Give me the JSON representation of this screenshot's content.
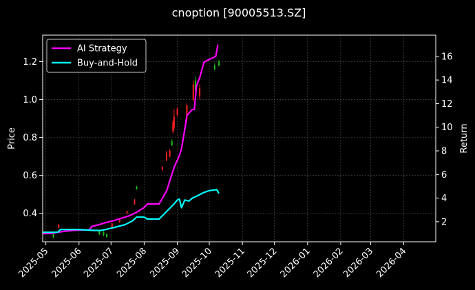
{
  "chart_data": {
    "type": "line",
    "title": "cnoption [90005513.SZ]",
    "xlabel": "",
    "ylabel": "Price",
    "y2label": "Return",
    "x_ticks": [
      "2025-05",
      "2025-06",
      "2025-07",
      "2025-08",
      "2025-09",
      "2025-10",
      "2025-11",
      "2025-12",
      "2026-01",
      "2026-02",
      "2026-03",
      "2026-04"
    ],
    "xlim": [
      "2025-04-28",
      "2026-05-01"
    ],
    "ylim": [
      0.25,
      1.34
    ],
    "y_ticks": [
      "0.4",
      "0.6",
      "0.8",
      "1.0",
      "1.2"
    ],
    "y2lim": [
      0.3,
      17.8
    ],
    "y2_ticks": [
      "2",
      "4",
      "6",
      "8",
      "10",
      "12",
      "14",
      "16"
    ],
    "grid": true,
    "legend_position": "top-left",
    "colors": {
      "background": "#000000",
      "up": "#ff2020",
      "down": "#20c020",
      "ai": "#ff00ff",
      "bh": "#00ffff",
      "grid": "#555555"
    },
    "series": [
      {
        "name": "AI Strategy",
        "axis": "right",
        "color": "#ff00ff",
        "points": [
          [
            "2025-04-28",
            1.0
          ],
          [
            "2025-05-05",
            1.0
          ],
          [
            "2025-05-12",
            1.1
          ],
          [
            "2025-05-19",
            1.2
          ],
          [
            "2025-05-26",
            1.25
          ],
          [
            "2025-06-02",
            1.3
          ],
          [
            "2025-06-09",
            1.3
          ],
          [
            "2025-06-11",
            1.35
          ],
          [
            "2025-06-13",
            1.6
          ],
          [
            "2025-06-20",
            1.75
          ],
          [
            "2025-06-27",
            1.95
          ],
          [
            "2025-07-04",
            2.1
          ],
          [
            "2025-07-11",
            2.3
          ],
          [
            "2025-07-18",
            2.5
          ],
          [
            "2025-07-25",
            2.8
          ],
          [
            "2025-08-01",
            3.2
          ],
          [
            "2025-08-04",
            3.5
          ],
          [
            "2025-08-15",
            3.5
          ],
          [
            "2025-08-22",
            4.6
          ],
          [
            "2025-08-29",
            6.6
          ],
          [
            "2025-09-03",
            7.6
          ],
          [
            "2025-09-05",
            8.2
          ],
          [
            "2025-09-08",
            9.8
          ],
          [
            "2025-09-10",
            11.0
          ],
          [
            "2025-09-15",
            11.5
          ],
          [
            "2025-09-17",
            11.5
          ],
          [
            "2025-09-19",
            13.5
          ],
          [
            "2025-09-22",
            14.2
          ],
          [
            "2025-09-26",
            15.5
          ],
          [
            "2025-09-30",
            15.7
          ],
          [
            "2025-10-07",
            16.0
          ],
          [
            "2025-10-09",
            17.0
          ]
        ]
      },
      {
        "name": "Buy-and-Hold",
        "axis": "left",
        "color": "#00ffff",
        "points": [
          [
            "2025-04-28",
            0.3
          ],
          [
            "2025-05-12",
            0.3
          ],
          [
            "2025-05-15",
            0.315
          ],
          [
            "2025-05-30",
            0.315
          ],
          [
            "2025-06-15",
            0.31
          ],
          [
            "2025-06-22",
            0.31
          ],
          [
            "2025-06-30",
            0.32
          ],
          [
            "2025-07-07",
            0.33
          ],
          [
            "2025-07-14",
            0.34
          ],
          [
            "2025-07-21",
            0.36
          ],
          [
            "2025-07-25",
            0.38
          ],
          [
            "2025-08-01",
            0.38
          ],
          [
            "2025-08-04",
            0.37
          ],
          [
            "2025-08-15",
            0.37
          ],
          [
            "2025-08-22",
            0.41
          ],
          [
            "2025-08-29",
            0.45
          ],
          [
            "2025-09-01",
            0.47
          ],
          [
            "2025-09-03",
            0.475
          ],
          [
            "2025-09-05",
            0.43
          ],
          [
            "2025-09-08",
            0.47
          ],
          [
            "2025-09-12",
            0.465
          ],
          [
            "2025-09-15",
            0.48
          ],
          [
            "2025-09-19",
            0.49
          ],
          [
            "2025-09-26",
            0.51
          ],
          [
            "2025-10-01",
            0.52
          ],
          [
            "2025-10-08",
            0.525
          ],
          [
            "2025-10-10",
            0.505
          ]
        ]
      }
    ],
    "candles": [
      {
        "date": "2025-05-08",
        "open": 0.29,
        "close": 0.275,
        "high": 0.295,
        "low": 0.268
      },
      {
        "date": "2025-05-13",
        "open": 0.325,
        "close": 0.34,
        "high": 0.345,
        "low": 0.32
      },
      {
        "date": "2025-06-20",
        "open": 0.305,
        "close": 0.29,
        "high": 0.31,
        "low": 0.285
      },
      {
        "date": "2025-06-24",
        "open": 0.3,
        "close": 0.285,
        "high": 0.305,
        "low": 0.28
      },
      {
        "date": "2025-06-27",
        "open": 0.29,
        "close": 0.275,
        "high": 0.295,
        "low": 0.272
      },
      {
        "date": "2025-07-02",
        "open": 0.33,
        "close": 0.345,
        "high": 0.35,
        "low": 0.325
      },
      {
        "date": "2025-07-09",
        "open": 0.355,
        "close": 0.37,
        "high": 0.375,
        "low": 0.35
      },
      {
        "date": "2025-07-16",
        "open": 0.4,
        "close": 0.41,
        "high": 0.415,
        "low": 0.395
      },
      {
        "date": "2025-07-23",
        "open": 0.45,
        "close": 0.47,
        "high": 0.475,
        "low": 0.445
      },
      {
        "date": "2025-07-25",
        "open": 0.54,
        "close": 0.53,
        "high": 0.545,
        "low": 0.525
      },
      {
        "date": "2025-08-18",
        "open": 0.63,
        "close": 0.645,
        "high": 0.65,
        "low": 0.625
      },
      {
        "date": "2025-08-22",
        "open": 0.68,
        "close": 0.72,
        "high": 0.73,
        "low": 0.675
      },
      {
        "date": "2025-08-25",
        "open": 0.7,
        "close": 0.73,
        "high": 0.74,
        "low": 0.695
      },
      {
        "date": "2025-08-27",
        "open": 0.78,
        "close": 0.76,
        "high": 0.79,
        "low": 0.755
      },
      {
        "date": "2025-08-28",
        "open": 0.83,
        "close": 0.88,
        "high": 0.89,
        "low": 0.82
      },
      {
        "date": "2025-08-29",
        "open": 0.85,
        "close": 0.91,
        "high": 0.95,
        "low": 0.84
      },
      {
        "date": "2025-09-01",
        "open": 0.92,
        "close": 0.95,
        "high": 0.96,
        "low": 0.91
      },
      {
        "date": "2025-09-10",
        "open": 0.9,
        "close": 0.97,
        "high": 0.98,
        "low": 0.88
      },
      {
        "date": "2025-09-16",
        "open": 1.0,
        "close": 1.08,
        "high": 1.1,
        "low": 0.99
      },
      {
        "date": "2025-09-18",
        "open": 1.1,
        "close": 1.05,
        "high": 1.12,
        "low": 1.04
      },
      {
        "date": "2025-09-22",
        "open": 1.02,
        "close": 1.06,
        "high": 1.08,
        "low": 1.0
      },
      {
        "date": "2025-10-06",
        "open": 1.18,
        "close": 1.16,
        "high": 1.19,
        "low": 1.155
      },
      {
        "date": "2025-10-10",
        "open": 1.2,
        "close": 1.18,
        "high": 1.21,
        "low": 1.175
      }
    ]
  }
}
